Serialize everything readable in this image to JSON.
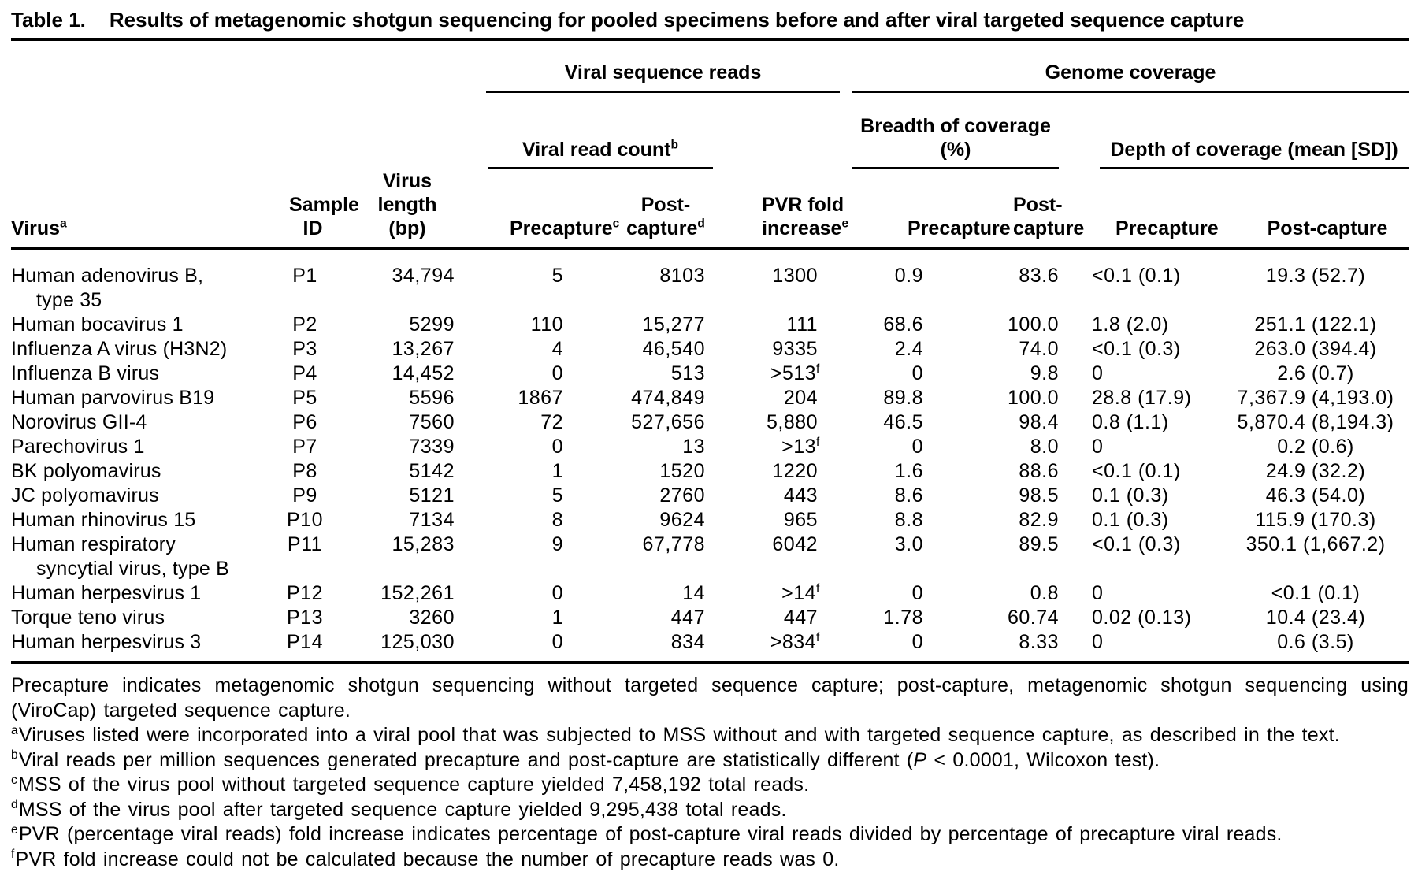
{
  "colors": {
    "ink": "#000000",
    "background": "#ffffff"
  },
  "title": {
    "label": "Table 1.",
    "text": "Results of metagenomic shotgun sequencing for pooled specimens before and after viral targeted sequence capture"
  },
  "header": {
    "virus": {
      "text": "Virus",
      "sup": "a"
    },
    "sample": {
      "l1": "Sample",
      "l2": "ID"
    },
    "length": {
      "l1": "Virus",
      "l2": "length",
      "l3": "(bp)"
    },
    "group_viral": "Viral sequence reads",
    "group_genome": "Genome coverage",
    "read_count": {
      "text": "Viral read count",
      "sup": "b"
    },
    "breadth": {
      "l1": "Breadth of coverage",
      "l2": "(%)"
    },
    "depth": "Depth of coverage (mean [SD])",
    "sub": {
      "pre_count": {
        "text": "Precapture",
        "sup": "c"
      },
      "post_count": {
        "l1": "Post-",
        "l2": "capture",
        "sup": "d"
      },
      "pvr": {
        "l1": "PVR fold",
        "l2": "increase",
        "sup": "e"
      },
      "breadth_pre": "Precapture",
      "breadth_post": {
        "l1": "Post-",
        "l2": "capture"
      },
      "depth_pre": "Precapture",
      "depth_post": "Post-capture"
    }
  },
  "rows": [
    {
      "virus": "Human adenovirus B,|type 35",
      "sample": "P1",
      "length": "34,794",
      "pre": "5",
      "post": "8103",
      "pvr": "1300",
      "breadth_pre": "0.9",
      "breadth_post": "83.6",
      "depth_pre": "<0.1 (0.1)",
      "depth_post": "19.3 (52.7)"
    },
    {
      "virus": "Human bocavirus 1",
      "sample": "P2",
      "length": "5299",
      "pre": "110",
      "post": "15,277",
      "pvr": "111",
      "breadth_pre": "68.6",
      "breadth_post": "100.0",
      "depth_pre": "1.8 (2.0)",
      "depth_post": "251.1 (122.1)"
    },
    {
      "virus": "Influenza A virus (H3N2)",
      "sample": "P3",
      "length": "13,267",
      "pre": "4",
      "post": "46,540",
      "pvr": "9335",
      "breadth_pre": "2.4",
      "breadth_post": "74.0",
      "depth_pre": "<0.1 (0.3)",
      "depth_post": "263.0 (394.4)"
    },
    {
      "virus": "Influenza B virus",
      "sample": "P4",
      "length": "14,452",
      "pre": "0",
      "post": "513",
      "pvr": ">513^f",
      "breadth_pre": "0",
      "breadth_post": "9.8",
      "depth_pre": "0",
      "depth_post": "2.6 (0.7)"
    },
    {
      "virus": "Human parvovirus B19",
      "sample": "P5",
      "length": "5596",
      "pre": "1867",
      "post": "474,849",
      "pvr": "204",
      "breadth_pre": "89.8",
      "breadth_post": "100.0",
      "depth_pre": "28.8 (17.9)",
      "depth_post": "7,367.9 (4,193.0)"
    },
    {
      "virus": "Norovirus GII-4",
      "sample": "P6",
      "length": "7560",
      "pre": "72",
      "post": "527,656",
      "pvr": "5,880",
      "breadth_pre": "46.5",
      "breadth_post": "98.4",
      "depth_pre": "0.8 (1.1)",
      "depth_post": "5,870.4 (8,194.3)"
    },
    {
      "virus": "Parechovirus 1",
      "sample": "P7",
      "length": "7339",
      "pre": "0",
      "post": "13",
      "pvr": ">13^f",
      "breadth_pre": "0",
      "breadth_post": "8.0",
      "depth_pre": "0",
      "depth_post": "0.2 (0.6)"
    },
    {
      "virus": "BK polyomavirus",
      "sample": "P8",
      "length": "5142",
      "pre": "1",
      "post": "1520",
      "pvr": "1220",
      "breadth_pre": "1.6",
      "breadth_post": "88.6",
      "depth_pre": "<0.1 (0.1)",
      "depth_post": "24.9 (32.2)"
    },
    {
      "virus": "JC polyomavirus",
      "sample": "P9",
      "length": "5121",
      "pre": "5",
      "post": "2760",
      "pvr": "443",
      "breadth_pre": "8.6",
      "breadth_post": "98.5",
      "depth_pre": "0.1 (0.3)",
      "depth_post": "46.3 (54.0)"
    },
    {
      "virus": "Human rhinovirus 15",
      "sample": "P10",
      "length": "7134",
      "pre": "8",
      "post": "9624",
      "pvr": "965",
      "breadth_pre": "8.8",
      "breadth_post": "82.9",
      "depth_pre": "0.1 (0.3)",
      "depth_post": "115.9 (170.3)"
    },
    {
      "virus": "Human respiratory|syncytial virus, type B",
      "sample": "P11",
      "length": "15,283",
      "pre": "9",
      "post": "67,778",
      "pvr": "6042",
      "breadth_pre": "3.0",
      "breadth_post": "89.5",
      "depth_pre": "<0.1 (0.3)",
      "depth_post": "350.1 (1,667.2)"
    },
    {
      "virus": "Human herpesvirus 1",
      "sample": "P12",
      "length": "152,261",
      "pre": "0",
      "post": "14",
      "pvr": ">14^f",
      "breadth_pre": "0",
      "breadth_post": "0.8",
      "depth_pre": "0",
      "depth_post": "<0.1 (0.1)"
    },
    {
      "virus": "Torque teno virus",
      "sample": "P13",
      "length": "3260",
      "pre": "1",
      "post": "447",
      "pvr": "447",
      "breadth_pre": "1.78",
      "breadth_post": "60.74",
      "depth_pre": "0.02 (0.13)",
      "depth_post": "10.4 (23.4)"
    },
    {
      "virus": "Human herpesvirus 3",
      "sample": "P14",
      "length": "125,030",
      "pre": "0",
      "post": "834",
      "pvr": ">834^f",
      "breadth_pre": "0",
      "breadth_post": "8.33",
      "depth_pre": "0",
      "depth_post": "0.6 (3.5)"
    }
  ],
  "footnotes": [
    {
      "text": "Precapture indicates metagenomic shotgun sequencing without targeted sequence capture; post-capture, metagenomic shotgun sequencing using",
      "justify": true
    },
    {
      "text": "(ViroCap) targeted sequence capture."
    },
    {
      "sup": "a",
      "text": "Viruses listed were incorporated into a viral pool that was subjected to MSS without and with targeted sequence capture, as described in the text."
    },
    {
      "sup": "b",
      "pre": "Viral reads per million sequences generated precapture and post-capture are statistically different (",
      "italic": "P",
      "post": " < 0.0001, Wilcoxon test)."
    },
    {
      "sup": "c",
      "text": "MSS of the virus pool without targeted sequence capture yielded 7,458,192 total reads."
    },
    {
      "sup": "d",
      "text": "MSS of the virus pool after targeted sequence capture yielded 9,295,438 total reads."
    },
    {
      "sup": "e",
      "text": "PVR (percentage viral reads) fold increase indicates percentage of post-capture viral reads divided by percentage of precapture viral reads."
    },
    {
      "sup": "f",
      "text": "PVR fold increase could not be calculated because the number of precapture reads was 0."
    }
  ]
}
